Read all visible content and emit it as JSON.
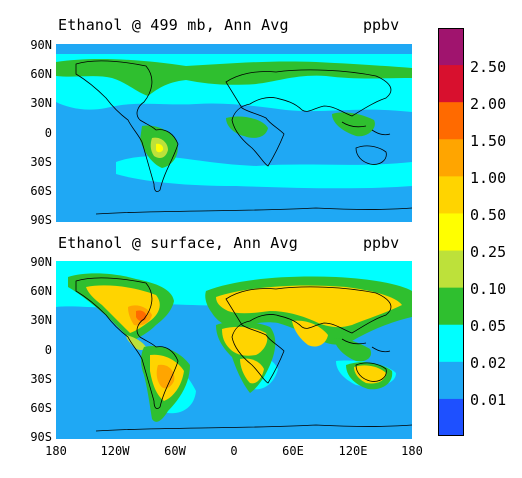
{
  "panels": [
    {
      "title": "Ethanol @ 499 mb, Ann Avg",
      "unit": "ppbv",
      "lat_labels": [
        "90N",
        "60N",
        "30N",
        "0",
        "30S",
        "60S",
        "90S"
      ]
    },
    {
      "title": "Ethanol @ surface, Ann Avg",
      "unit": "ppbv",
      "lat_labels": [
        "90N",
        "60N",
        "30N",
        "0",
        "30S",
        "60S",
        "90S"
      ]
    }
  ],
  "lon_labels": [
    "180",
    "120W",
    "60W",
    "0",
    "60E",
    "120E",
    "180"
  ],
  "colorbar": {
    "labels": [
      "2.50",
      "2.00",
      "1.50",
      "1.00",
      "0.50",
      "0.25",
      "0.10",
      "0.05",
      "0.02",
      "0.01"
    ],
    "colors": [
      "#a0146e",
      "#d8102e",
      "#ff6a00",
      "#ffa500",
      "#ffd400",
      "#ffff00",
      "#bde13a",
      "#2fbf2f",
      "#00ffff",
      "#1fa8f4",
      "#1e50ff"
    ]
  }
}
